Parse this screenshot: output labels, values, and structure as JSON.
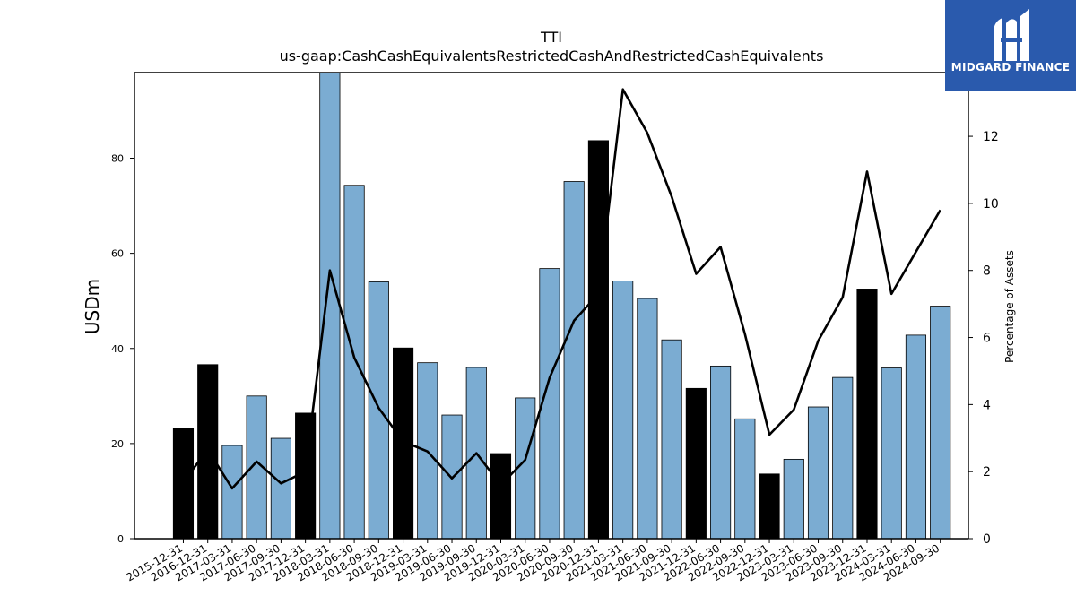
{
  "title": "TTI",
  "subtitle": "us-gaap:CashCashEquivalentsRestrictedCashAndRestrictedCashEquivalents",
  "logo": {
    "text": "MIDGARD FINANCE",
    "background": "#2a5aad"
  },
  "colors": {
    "bar_quarter": "#7bacd2",
    "bar_year_end": "#000000",
    "line": "#000000"
  },
  "chart_data": {
    "type": "bar",
    "ylabel": "USDm",
    "y2label": "Percentage of Assets",
    "ylim": [
      0,
      98
    ],
    "y2lim": [
      0,
      13.9
    ],
    "yticks": [
      0,
      20,
      40,
      60,
      80
    ],
    "y2ticks": [
      0,
      2,
      4,
      6,
      8,
      10,
      12
    ],
    "grid": false,
    "categories": [
      "2015-12-31",
      "2016-12-31",
      "2017-03-31",
      "2017-06-30",
      "2017-09-30",
      "2017-12-31",
      "2018-03-31",
      "2018-06-30",
      "2018-09-30",
      "2018-12-31",
      "2019-03-31",
      "2019-06-30",
      "2019-09-30",
      "2019-12-31",
      "2020-03-31",
      "2020-06-30",
      "2020-09-30",
      "2020-12-31",
      "2021-03-31",
      "2021-06-30",
      "2021-09-30",
      "2021-12-31",
      "2022-06-30",
      "2022-09-30",
      "2022-12-31",
      "2023-03-31",
      "2023-06-30",
      "2023-09-30",
      "2023-12-31",
      "2024-03-31",
      "2024-06-30",
      "2024-09-30"
    ],
    "series": [
      {
        "type": "bar",
        "values": [
          23.2,
          36.6,
          19.6,
          30.0,
          21.1,
          26.4,
          98.5,
          74.3,
          54.0,
          40.1,
          37.0,
          26.0,
          36.0,
          17.9,
          29.6,
          56.8,
          75.1,
          83.7,
          54.2,
          50.5,
          41.8,
          31.6,
          36.3,
          25.2,
          13.6,
          16.7,
          27.7,
          33.9,
          52.5,
          35.9,
          42.8,
          48.9
        ],
        "year_end": [
          true,
          true,
          false,
          false,
          false,
          true,
          false,
          false,
          false,
          true,
          false,
          false,
          false,
          true,
          false,
          false,
          false,
          true,
          false,
          false,
          false,
          true,
          false,
          false,
          true,
          false,
          false,
          false,
          true,
          false,
          false,
          false
        ]
      },
      {
        "type": "line",
        "axis": "right",
        "values": [
          1.7,
          2.65,
          1.5,
          2.3,
          1.65,
          2.0,
          8.0,
          5.4,
          3.9,
          2.9,
          2.6,
          1.8,
          2.55,
          1.6,
          2.35,
          4.8,
          6.5,
          7.3,
          13.4,
          12.1,
          10.2,
          7.9,
          8.7,
          6.1,
          3.1,
          3.85,
          5.9,
          7.2,
          10.95,
          7.3,
          8.55,
          9.8
        ]
      }
    ]
  }
}
